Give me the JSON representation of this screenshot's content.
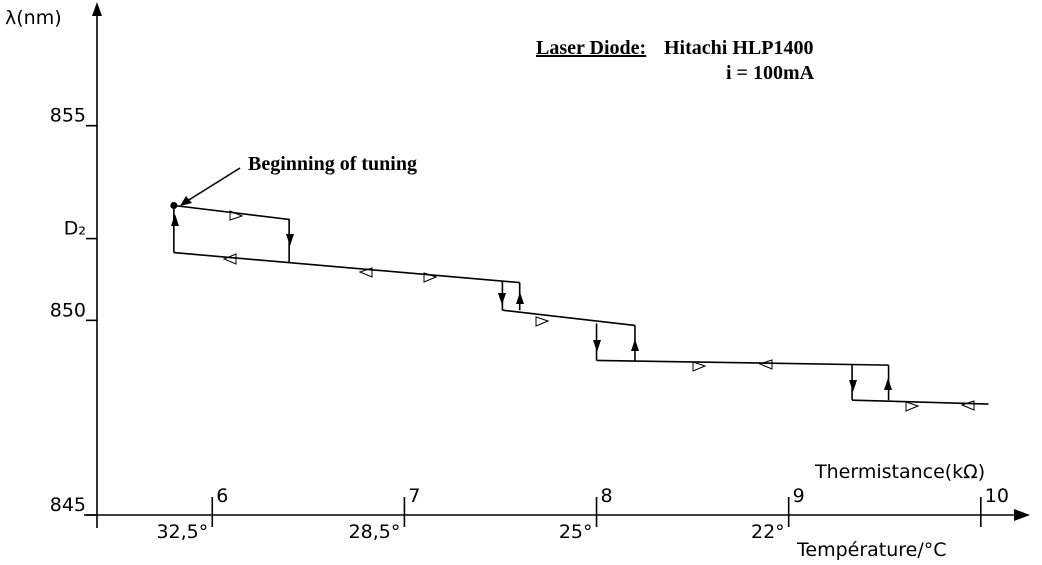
{
  "chart_data": {
    "type": "line",
    "title_lines": [
      "Laser Diode:",
      "Hitachi HLP1400",
      "i = 100mA"
    ],
    "annotation": "Beginning of tuning",
    "ylabel": "λ(nm)",
    "xlabel": "Thermistance(kΩ)",
    "x2label": "Température/°C",
    "xlim": [
      5.4,
      10.23
    ],
    "ylim": [
      845,
      858.1
    ],
    "xticks": [
      6,
      7,
      8,
      9,
      10
    ],
    "x2ticks": [
      {
        "value": 6,
        "label": "32,5°"
      },
      {
        "value": 7,
        "label": "28,5°"
      },
      {
        "value": 8,
        "label": "25°"
      },
      {
        "value": 9,
        "label": "22°"
      }
    ],
    "yticks": [
      845,
      850,
      {
        "value": 852.1,
        "label": "D₂"
      },
      855
    ],
    "color": "#000000",
    "series": [
      {
        "x": [
          5.8,
          5.8,
          6.4,
          6.4
        ],
        "values": [
          851.74,
          852.95,
          852.59,
          851.49
        ]
      },
      {
        "x": [
          5.8,
          7.6
        ],
        "values": [
          851.74,
          850.97
        ]
      },
      {
        "x": [
          7.51,
          7.51
        ],
        "values": [
          851.0,
          850.26
        ]
      },
      {
        "x": [
          7.6,
          7.6
        ],
        "values": [
          850.26,
          850.97
        ]
      },
      {
        "x": [
          7.51,
          8.2
        ],
        "values": [
          850.26,
          849.87
        ]
      },
      {
        "x": [
          8.0,
          8.0
        ],
        "values": [
          849.92,
          848.97
        ]
      },
      {
        "x": [
          8.2,
          8.2
        ],
        "values": [
          848.97,
          849.87
        ]
      },
      {
        "x": [
          8.0,
          9.52
        ],
        "values": [
          848.97,
          848.85
        ]
      },
      {
        "x": [
          9.33,
          9.33
        ],
        "values": [
          848.85,
          847.95
        ]
      },
      {
        "x": [
          9.52,
          9.52
        ],
        "values": [
          847.95,
          848.85
        ]
      },
      {
        "x": [
          9.33,
          10.04
        ],
        "values": [
          847.95,
          847.85
        ]
      }
    ]
  }
}
